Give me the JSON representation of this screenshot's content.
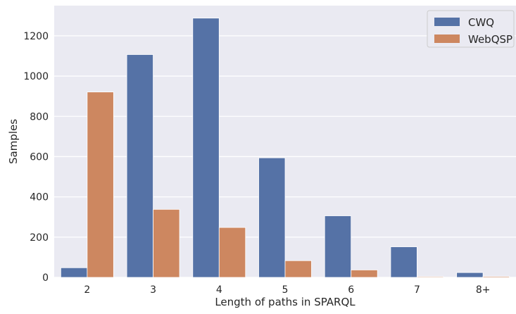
{
  "chart_data": {
    "type": "bar",
    "title": "",
    "xlabel": "Length of paths in SPARQL",
    "ylabel": "Samples",
    "categories": [
      "2",
      "3",
      "4",
      "5",
      "6",
      "7",
      "8+"
    ],
    "series": [
      {
        "name": "CWQ",
        "color": "#5572a6",
        "values": [
          48,
          1107,
          1288,
          594,
          306,
          152,
          24
        ]
      },
      {
        "name": "WebQSP",
        "color": "#cd8760",
        "values": [
          921,
          338,
          248,
          83,
          37,
          4,
          5
        ]
      }
    ],
    "ylim": [
      0,
      1350
    ],
    "yticks": [
      0,
      200,
      400,
      600,
      800,
      1000,
      1200
    ],
    "grid": true,
    "legend_position": "top-right",
    "background": "#eaeaf2"
  }
}
